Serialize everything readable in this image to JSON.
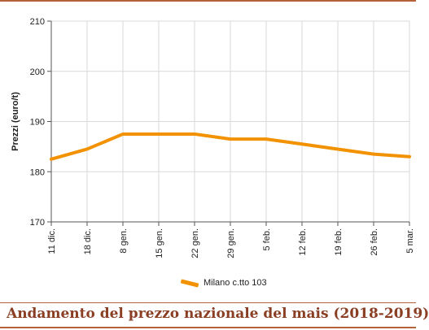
{
  "chart_data": {
    "type": "line",
    "title": "",
    "xlabel": "",
    "ylabel": "Prezzi (euro/t)",
    "ylim": [
      170,
      210
    ],
    "yticks": [
      170,
      180,
      190,
      200,
      210
    ],
    "grid": true,
    "categories": [
      "11 dic.",
      "18 dic.",
      "8 gen.",
      "15 gen.",
      "22 gen.",
      "29 gen.",
      "5 feb.",
      "12 feb.",
      "19 feb.",
      "26 feb.",
      "5 mar."
    ],
    "series": [
      {
        "name": "Milano  c.tto 103",
        "values": [
          182.5,
          184.5,
          187.5,
          187.5,
          187.5,
          186.5,
          186.5,
          185.5,
          184.5,
          183.5,
          183.0
        ]
      }
    ],
    "legend_position": "bottom-center"
  },
  "colors": {
    "series": "#f39200",
    "grid": "#d9d9d9",
    "axis": "#555555",
    "accent": "#b5623a",
    "title": "#8a3f24"
  },
  "footer": {
    "title": "Andamento del prezzo nazionale del mais (2018-2019)"
  }
}
